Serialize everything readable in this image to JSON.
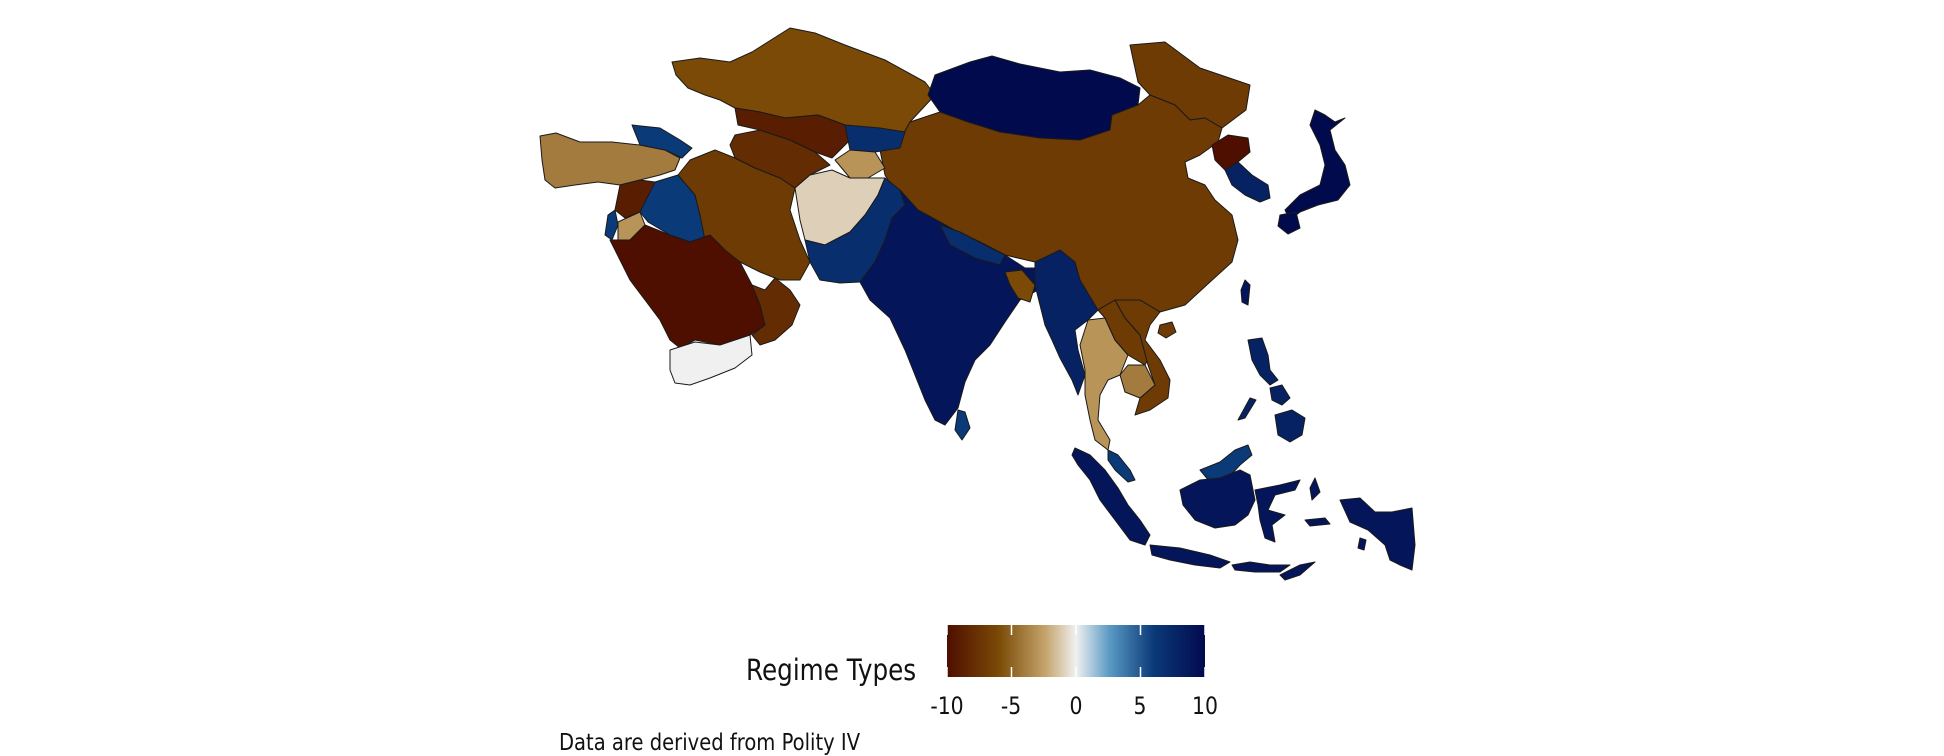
{
  "legend": {
    "title": "Regime Types",
    "ticks": [
      "-10",
      "-5",
      "0",
      "5",
      "10"
    ],
    "scale_min": -10,
    "scale_max": 10,
    "colors": [
      "#4e0e00",
      "#7a4a06",
      "#c4a36a",
      "#f0f0f0",
      "#5a9ac4",
      "#0b3a78",
      "#020a4e"
    ]
  },
  "caption": "Data are derived from Polity IV",
  "regions": [
    {
      "name": "kazakhstan",
      "score": -6
    },
    {
      "name": "mongolia",
      "score": 10
    },
    {
      "name": "china",
      "score": -7
    },
    {
      "name": "russia-far-east",
      "score": -7
    },
    {
      "name": "north-korea",
      "score": -10
    },
    {
      "name": "south-korea",
      "score": 8
    },
    {
      "name": "japan",
      "score": 10
    },
    {
      "name": "turkey",
      "score": -4
    },
    {
      "name": "iran",
      "score": -7
    },
    {
      "name": "uzbekistan",
      "score": -9
    },
    {
      "name": "turkmenistan",
      "score": -8
    },
    {
      "name": "kyrgyzstan",
      "score": 7
    },
    {
      "name": "tajikistan",
      "score": -3
    },
    {
      "name": "afghanistan",
      "score": -1
    },
    {
      "name": "pakistan",
      "score": 7
    },
    {
      "name": "india",
      "score": 9
    },
    {
      "name": "nepal",
      "score": 7
    },
    {
      "name": "bangladesh",
      "score": -6
    },
    {
      "name": "myanmar",
      "score": 8
    },
    {
      "name": "thailand",
      "score": -3
    },
    {
      "name": "laos",
      "score": -7
    },
    {
      "name": "vietnam",
      "score": -7
    },
    {
      "name": "cambodia",
      "score": -4
    },
    {
      "name": "malaysia",
      "score": 6
    },
    {
      "name": "indonesia",
      "score": 9
    },
    {
      "name": "philippines",
      "score": 8
    },
    {
      "name": "saudi-arabia",
      "score": -10
    },
    {
      "name": "yemen",
      "score": 0
    },
    {
      "name": "oman",
      "score": -8
    },
    {
      "name": "iraq",
      "score": 6
    },
    {
      "name": "syria",
      "score": -9
    },
    {
      "name": "jordan",
      "score": -3
    },
    {
      "name": "israel",
      "score": 6
    },
    {
      "name": "caucasus",
      "score": 6
    },
    {
      "name": "sri-lanka",
      "score": 6
    },
    {
      "name": "taiwan",
      "score": 9
    },
    {
      "name": "hainan",
      "score": -7
    }
  ]
}
